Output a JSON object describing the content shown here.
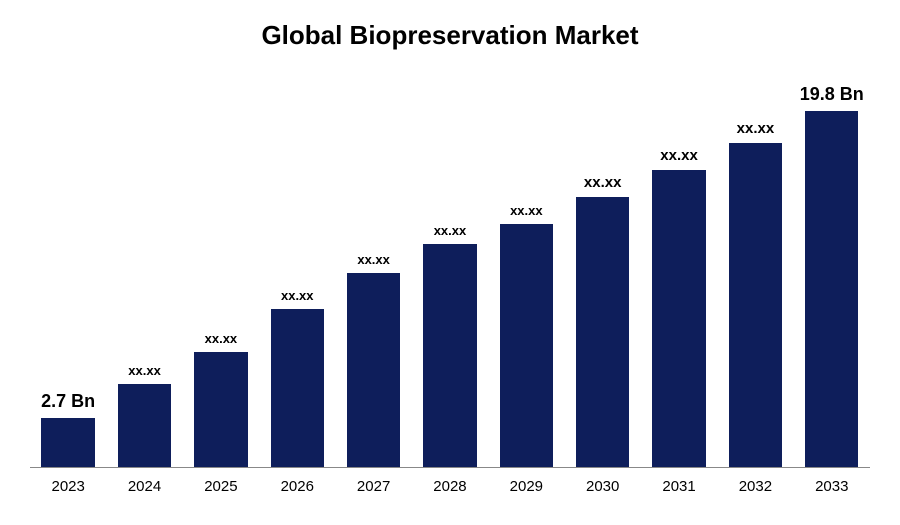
{
  "chart": {
    "type": "bar",
    "title": "Global Biopreservation Market",
    "title_fontsize": 26,
    "title_color": "#000000",
    "background_color": "#ffffff",
    "axis_line_color": "#888888",
    "bar_width": 0.7,
    "ylim": [
      0,
      22
    ],
    "categories": [
      "2023",
      "2024",
      "2025",
      "2026",
      "2027",
      "2028",
      "2029",
      "2030",
      "2031",
      "2032",
      "2033"
    ],
    "values": [
      2.7,
      4.6,
      6.4,
      8.8,
      10.8,
      12.4,
      13.5,
      15.0,
      16.5,
      18.0,
      19.8
    ],
    "value_labels": [
      "2.7 Bn",
      "xx.xx",
      "xx.xx",
      "xx.xx",
      "xx.xx",
      "xx.xx",
      "xx.xx",
      "xx.xx",
      "xx.xx",
      "xx.xx",
      "19.8 Bn"
    ],
    "label_fontsizes": [
      18,
      13,
      13,
      13,
      13,
      13,
      13,
      15,
      15,
      15,
      18
    ],
    "bar_color": "#0e1e5b",
    "xaxis_fontsize": 15,
    "xaxis_color": "#000000"
  }
}
